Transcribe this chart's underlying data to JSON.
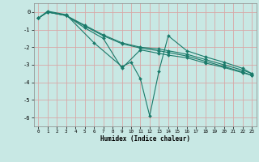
{
  "xlabel": "Humidex (Indice chaleur)",
  "background_color": "#c8e8e4",
  "grid_color": "#d8a8a8",
  "line_color": "#1a7a6a",
  "xlim": [
    -0.5,
    23.5
  ],
  "ylim": [
    -6.5,
    0.5
  ],
  "yticks": [
    0,
    -1,
    -2,
    -3,
    -4,
    -5,
    -6
  ],
  "xticks": [
    0,
    1,
    2,
    3,
    4,
    5,
    6,
    7,
    8,
    9,
    10,
    11,
    12,
    13,
    14,
    15,
    16,
    17,
    18,
    19,
    20,
    21,
    22,
    23
  ],
  "lines": [
    {
      "x": [
        0,
        1,
        3,
        6,
        9,
        10,
        11,
        12,
        13,
        14,
        16,
        18,
        20,
        22,
        23
      ],
      "y": [
        -0.35,
        0.05,
        -0.15,
        -1.75,
        -3.1,
        -2.85,
        -3.8,
        -5.9,
        -3.35,
        -1.35,
        -2.2,
        -2.55,
        -2.85,
        -3.2,
        -3.5
      ]
    },
    {
      "x": [
        0,
        1,
        3,
        5,
        7,
        9,
        11,
        13,
        14,
        16,
        18,
        20,
        22,
        23
      ],
      "y": [
        -0.35,
        0.0,
        -0.2,
        -0.75,
        -1.3,
        -1.75,
        -2.0,
        -2.1,
        -2.2,
        -2.4,
        -2.7,
        -3.0,
        -3.3,
        -3.5
      ]
    },
    {
      "x": [
        0,
        1,
        3,
        5,
        7,
        9,
        11,
        13,
        14,
        16,
        18,
        20,
        22,
        23
      ],
      "y": [
        -0.35,
        0.0,
        -0.2,
        -0.8,
        -1.35,
        -1.8,
        -2.05,
        -2.2,
        -2.3,
        -2.5,
        -2.8,
        -3.1,
        -3.4,
        -3.6
      ]
    },
    {
      "x": [
        0,
        1,
        3,
        5,
        7,
        9,
        11,
        13,
        14,
        16,
        18,
        20,
        22,
        23
      ],
      "y": [
        -0.35,
        0.0,
        -0.2,
        -0.9,
        -1.5,
        -3.2,
        -2.15,
        -2.35,
        -2.45,
        -2.6,
        -2.9,
        -3.15,
        -3.45,
        -3.6
      ]
    }
  ]
}
